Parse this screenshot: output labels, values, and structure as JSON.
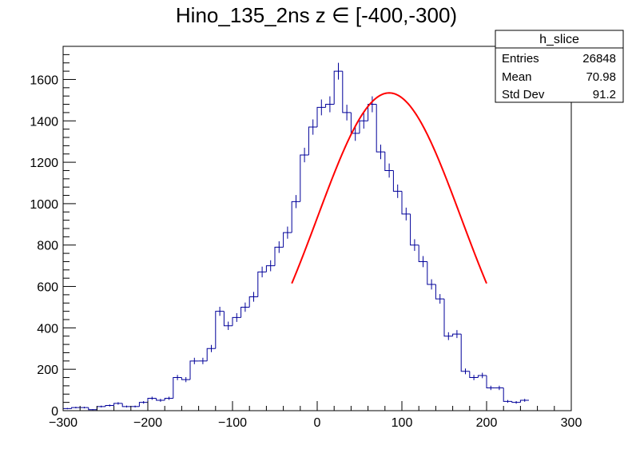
{
  "chart_data": {
    "type": "histogram",
    "title": "Hino_135_2ns z  ∈ [-400,-300)",
    "xlabel": "",
    "ylabel": "",
    "xlim": [
      -300,
      300
    ],
    "ylim": [
      0,
      1760
    ],
    "bin_width": 10,
    "x_ticks": [
      -300,
      -200,
      -100,
      0,
      100,
      200,
      300
    ],
    "x_tick_labels": [
      "−300",
      "−200",
      "−100",
      "0",
      "100",
      "200",
      "300"
    ],
    "y_ticks": [
      0,
      200,
      400,
      600,
      800,
      1000,
      1200,
      1400,
      1600
    ],
    "y_tick_labels": [
      "0",
      "200",
      "400",
      "600",
      "800",
      "1000",
      "1200",
      "1400",
      "1600"
    ],
    "bin_edges_start": -300,
    "bin_counts": [
      10,
      15,
      15,
      5,
      20,
      25,
      35,
      20,
      20,
      40,
      60,
      50,
      60,
      160,
      150,
      240,
      240,
      300,
      480,
      410,
      450,
      500,
      550,
      670,
      700,
      790,
      860,
      1010,
      1235,
      1370,
      1465,
      1480,
      1640,
      1440,
      1340,
      1400,
      1480,
      1250,
      1160,
      1060,
      950,
      800,
      720,
      610,
      540,
      360,
      370,
      190,
      160,
      170,
      110,
      110,
      45,
      40,
      50
    ],
    "series_color": "#000099",
    "fit": {
      "name": "gaus",
      "color": "#ff0000",
      "x_range": [
        -30,
        200
      ],
      "amplitude": 1535,
      "mean": 85,
      "sigma": 85
    },
    "stats_box": {
      "title": "h_slice",
      "rows": [
        {
          "label": "Entries",
          "value": "26848"
        },
        {
          "label": "Mean",
          "value": "70.98"
        },
        {
          "label": "Std Dev",
          "value": "91.2"
        }
      ]
    }
  }
}
